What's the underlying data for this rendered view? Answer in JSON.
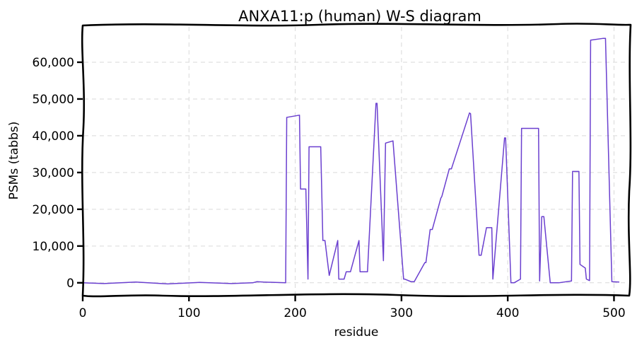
{
  "chart_data": {
    "type": "line",
    "title": "ANXA11:p (human) W-S diagram",
    "xlabel": "residue",
    "ylabel": "PSMs (tabbs)",
    "xlim": [
      0,
      515
    ],
    "ylim": [
      -3500,
      70000
    ],
    "x_ticks": [
      0,
      100,
      200,
      300,
      400,
      500
    ],
    "x_tick_labels": [
      "0",
      "100",
      "200",
      "300",
      "400",
      "500"
    ],
    "y_ticks": [
      0,
      10000,
      20000,
      30000,
      40000,
      50000,
      60000
    ],
    "y_tick_labels": [
      "0",
      "10,000",
      "20,000",
      "30,000",
      "40,000",
      "50,000",
      "60,000"
    ],
    "grid": true,
    "color": "#6a3fcf",
    "series": [
      {
        "x": [
          0,
          20,
          50,
          80,
          110,
          140,
          160,
          164,
          170,
          191,
          192,
          204,
          205,
          210,
          212,
          213,
          224,
          226,
          228,
          232,
          240,
          241,
          246,
          248,
          252,
          260,
          261,
          268,
          276,
          277,
          283,
          285,
          292,
          302,
          303,
          309,
          312,
          322,
          323,
          327,
          329,
          337,
          338,
          345,
          347,
          364,
          365,
          373,
          375,
          380,
          385,
          386,
          397,
          398,
          403,
          406,
          412,
          413,
          429,
          430,
          432,
          434,
          440,
          448,
          460,
          461,
          467,
          468,
          473,
          474,
          477,
          478,
          490,
          492,
          498,
          505
        ],
        "y": [
          0,
          -200,
          200,
          -300,
          100,
          -200,
          0,
          300,
          200,
          0,
          45000,
          45600,
          25500,
          25500,
          1000,
          37000,
          37000,
          11500,
          11500,
          2000,
          11500,
          1000,
          1000,
          3000,
          3000,
          11500,
          3000,
          3000,
          48800,
          48800,
          6000,
          38000,
          38600,
          1000,
          1000,
          300,
          300,
          5500,
          5500,
          14500,
          14500,
          23000,
          23500,
          31000,
          31000,
          46200,
          46000,
          7500,
          7500,
          15000,
          15000,
          1000,
          39400,
          39400,
          0,
          0,
          1000,
          42000,
          42000,
          500,
          18000,
          18000,
          0,
          0,
          500,
          30300,
          30300,
          5000,
          4000,
          1000,
          600,
          66000,
          66500,
          66500,
          300,
          200
        ]
      }
    ]
  }
}
